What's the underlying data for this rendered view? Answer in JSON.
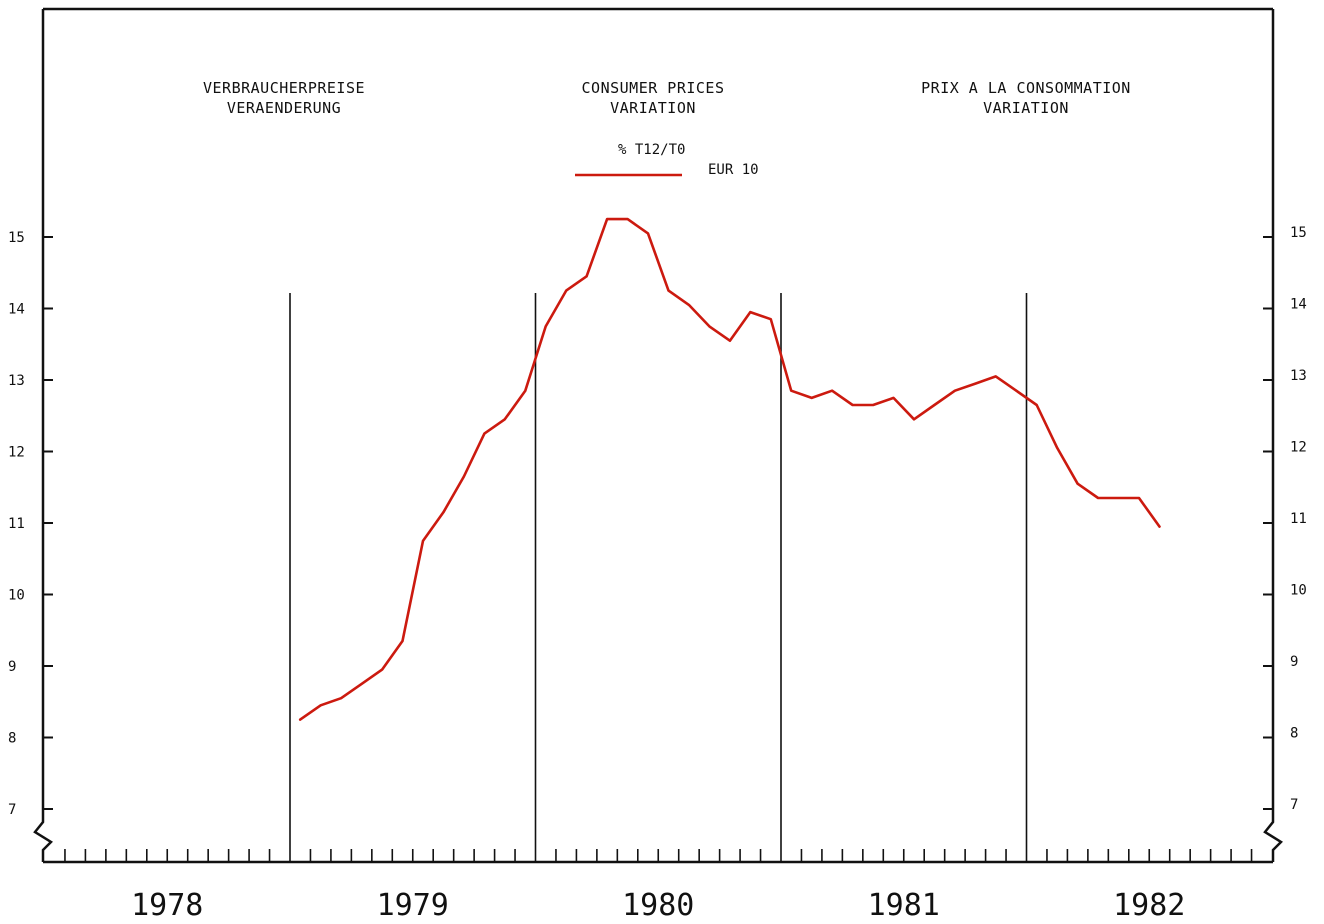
{
  "titles": {
    "de": [
      "VERBRAUCHERPREISE",
      "VERAENDERUNG"
    ],
    "en": [
      "CONSUMER PRICES",
      "VARIATION"
    ],
    "fr": [
      "PRIX A LA CONSOMMATION",
      "VARIATION"
    ]
  },
  "colors": {
    "series": "#cc1a0f",
    "axis": "#111111"
  },
  "chart_data": {
    "type": "line",
    "unit_label": "% T12/T0",
    "xlabel": "",
    "ylabel": "",
    "ylim": [
      7,
      15
    ],
    "y_ticks": [
      7,
      8,
      9,
      10,
      11,
      12,
      13,
      14,
      15
    ],
    "x_year_labels": [
      "1978",
      "1979",
      "1980",
      "1981",
      "1982"
    ],
    "year_dividers": [
      "1978/1979",
      "1979/1980",
      "1980/1981",
      "1981/1982"
    ],
    "grid": false,
    "legend_position": "top-center",
    "series": [
      {
        "name": "EUR 10",
        "x": [
          "1979-01",
          "1979-02",
          "1979-03",
          "1979-04",
          "1979-05",
          "1979-06",
          "1979-07",
          "1979-08",
          "1979-09",
          "1979-10",
          "1979-11",
          "1979-12",
          "1980-01",
          "1980-02",
          "1980-03",
          "1980-04",
          "1980-05",
          "1980-06",
          "1980-07",
          "1980-08",
          "1980-09",
          "1980-10",
          "1980-11",
          "1980-12",
          "1981-01",
          "1981-02",
          "1981-03",
          "1981-04",
          "1981-05",
          "1981-06",
          "1981-07",
          "1981-08",
          "1981-09",
          "1981-10",
          "1981-11",
          "1981-12",
          "1982-01",
          "1982-02",
          "1982-03",
          "1982-04",
          "1982-05",
          "1982-06",
          "1982-07"
        ],
        "values": [
          8.25,
          8.45,
          8.55,
          8.75,
          8.95,
          9.35,
          10.75,
          11.15,
          11.65,
          12.25,
          12.45,
          12.85,
          13.75,
          14.25,
          14.45,
          15.25,
          15.25,
          15.05,
          14.25,
          14.05,
          13.75,
          13.55,
          13.95,
          13.85,
          12.85,
          12.75,
          12.85,
          12.65,
          12.65,
          12.75,
          12.45,
          12.65,
          12.85,
          12.95,
          13.05,
          12.85,
          12.65,
          12.05,
          11.55,
          11.35,
          11.35,
          11.35,
          10.95
        ]
      }
    ]
  }
}
